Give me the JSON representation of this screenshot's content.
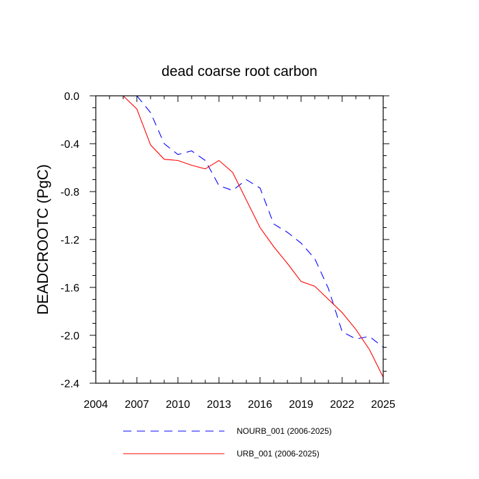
{
  "chart_data": {
    "type": "line",
    "title": "dead coarse root carbon",
    "xlabel": "",
    "ylabel": "DEADCROOTC  (PgC)",
    "xlim": [
      2004,
      2025
    ],
    "ylim": [
      -2.4,
      0.0
    ],
    "xticks": [
      2004,
      2007,
      2010,
      2013,
      2016,
      2019,
      2022,
      2025
    ],
    "yticks": [
      0.0,
      -0.4,
      -0.8,
      -1.2,
      -1.6,
      -2.0,
      -2.4
    ],
    "ytick_labels": [
      "0.0",
      "-0.4",
      "-0.8",
      "-1.2",
      "-1.6",
      "-2.0",
      "-2.4"
    ],
    "x": [
      2006,
      2007,
      2008,
      2009,
      2010,
      2011,
      2012,
      2013,
      2014,
      2015,
      2016,
      2017,
      2018,
      2019,
      2020,
      2021,
      2022,
      2023,
      2024,
      2025
    ],
    "series": [
      {
        "name": "NOURB_001 (2006-2025)",
        "color": "#0000ff",
        "style": "dashed",
        "values": [
          0.0,
          0.0,
          -0.14,
          -0.4,
          -0.49,
          -0.46,
          -0.54,
          -0.75,
          -0.79,
          -0.7,
          -0.77,
          -1.07,
          -1.14,
          -1.23,
          -1.36,
          -1.61,
          -1.97,
          -2.03,
          -2.01,
          -2.1
        ]
      },
      {
        "name": "URB_001 (2006-2025)",
        "color": "#ff0000",
        "style": "solid",
        "values": [
          0.0,
          -0.11,
          -0.41,
          -0.53,
          -0.54,
          -0.58,
          -0.61,
          -0.54,
          -0.64,
          -0.87,
          -1.1,
          -1.26,
          -1.4,
          -1.55,
          -1.59,
          -1.7,
          -1.81,
          -1.95,
          -2.12,
          -2.35
        ]
      }
    ],
    "legend_position": "bottom"
  }
}
